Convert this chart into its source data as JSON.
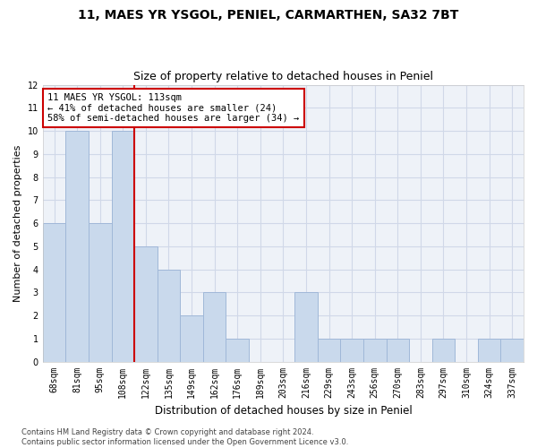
{
  "title1": "11, MAES YR YSGOL, PENIEL, CARMARTHEN, SA32 7BT",
  "title2": "Size of property relative to detached houses in Peniel",
  "xlabel": "Distribution of detached houses by size in Peniel",
  "ylabel": "Number of detached properties",
  "categories": [
    "68sqm",
    "81sqm",
    "95sqm",
    "108sqm",
    "122sqm",
    "135sqm",
    "149sqm",
    "162sqm",
    "176sqm",
    "189sqm",
    "203sqm",
    "216sqm",
    "229sqm",
    "243sqm",
    "256sqm",
    "270sqm",
    "283sqm",
    "297sqm",
    "310sqm",
    "324sqm",
    "337sqm"
  ],
  "values": [
    6,
    10,
    6,
    10,
    5,
    4,
    2,
    3,
    1,
    0,
    0,
    3,
    1,
    1,
    1,
    1,
    0,
    1,
    0,
    1,
    1
  ],
  "bar_color": "#c9d9ec",
  "bar_edge_color": "#a0b8d8",
  "vline_x": 3.5,
  "vline_color": "#cc0000",
  "annotation_line1": "11 MAES YR YSGOL: 113sqm",
  "annotation_line2": "← 41% of detached houses are smaller (24)",
  "annotation_line3": "58% of semi-detached houses are larger (34) →",
  "annotation_box_color": "#ffffff",
  "annotation_box_edge": "#cc0000",
  "ylim": [
    0,
    12
  ],
  "yticks": [
    0,
    1,
    2,
    3,
    4,
    5,
    6,
    7,
    8,
    9,
    10,
    11,
    12
  ],
  "grid_color": "#d0d8e8",
  "bg_color": "#eef2f8",
  "footer": "Contains HM Land Registry data © Crown copyright and database right 2024.\nContains public sector information licensed under the Open Government Licence v3.0.",
  "title1_fontsize": 10,
  "title2_fontsize": 9,
  "xlabel_fontsize": 8.5,
  "ylabel_fontsize": 8,
  "tick_fontsize": 7,
  "annotation_fontsize": 7.5,
  "footer_fontsize": 6
}
